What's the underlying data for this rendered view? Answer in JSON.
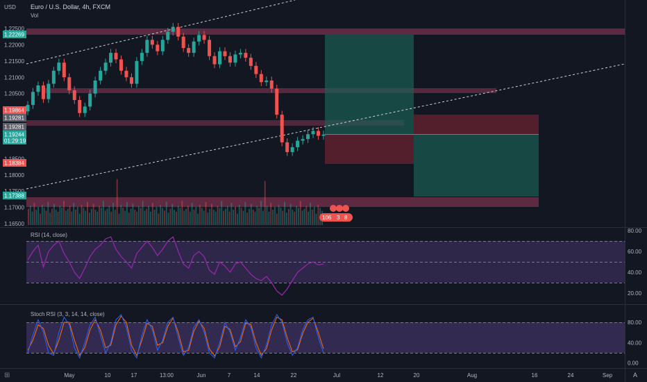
{
  "header": {
    "currency": "USD",
    "symbol_title": "Euro / U.S. Dollar, 4h, FXCM",
    "volume_label": "Vol",
    "rsi_label": "RSI (14, close)",
    "stoch_label": "Stoch RSI (3, 3, 14, 14, close)",
    "auto_button": "A",
    "tv_logo": "tradingview-logo-icon",
    "marker_text_1": "106",
    "marker_text_2": "3",
    "marker_text_3": "8"
  },
  "colors": {
    "background": "#131722",
    "up": "#26a69a",
    "down": "#ef5350",
    "zone": "#9c3a5c",
    "rsi_line": "#9c27b0",
    "rsi_band": "#7e57c2",
    "stoch_k": "#2962ff",
    "stoch_d": "#ff6d00",
    "target_zone": "#1b5e52",
    "stop_zone": "#6b2330"
  },
  "price_tags": [
    {
      "label": "1.22269",
      "color": "#26a69a"
    },
    {
      "label": "1.19864",
      "color": "#ef5350"
    },
    {
      "label": "1.19281",
      "color": "#5d606b"
    },
    {
      "label": "1.19281",
      "color": "#5d606b"
    },
    {
      "label": "1.19244",
      "color": "#26a69a"
    },
    {
      "label": "01:29:19",
      "color": "#26a69a"
    },
    {
      "label": "1.18384",
      "color": "#ef5350"
    },
    {
      "label": "1.17388",
      "color": "#26a69a"
    }
  ],
  "chart_data": [
    {
      "type": "candlestick",
      "title": "Euro / U.S. Dollar, 4h, FXCM",
      "yunit": "USD",
      "ylim": [
        1.1635,
        1.2275
      ],
      "yticks": [
        "1.22500",
        "1.22000",
        "1.21500",
        "1.21000",
        "1.20500",
        "1.20000",
        "1.19500",
        "1.19000",
        "1.18500",
        "1.18000",
        "1.17500",
        "1.17000",
        "1.16500"
      ],
      "x_ticks": [
        "May",
        "10",
        "17",
        "13:00",
        "Jun",
        "7",
        "14",
        "22",
        "Jul",
        "12",
        "20",
        "Aug",
        "16",
        "24",
        "Sep"
      ],
      "series": [
        {
          "close": [
            1.2015,
            1.2055,
            1.2075,
            1.2033,
            1.208,
            1.212,
            1.2145,
            1.21,
            1.206,
            1.203,
            1.199,
            1.201,
            1.205,
            1.209,
            1.212,
            1.2145,
            1.2175,
            1.2155,
            1.212,
            1.21,
            1.208,
            1.215,
            1.2175,
            1.2215,
            1.22,
            1.218,
            1.2215,
            1.224,
            1.2255,
            1.2225,
            1.219,
            1.2175,
            1.221,
            1.223,
            1.2215,
            1.2165,
            1.214,
            1.218,
            1.2165,
            1.2145,
            1.217,
            1.2175,
            1.216,
            1.2135,
            1.211,
            1.2085,
            1.209,
            1.2065,
            1.1985,
            1.19,
            1.187,
            1.1885,
            1.1905,
            1.191,
            1.1925,
            1.1935,
            1.192,
            1.1924
          ]
        }
      ]
    },
    {
      "type": "bar",
      "title": "Vol",
      "description": "volume histogram under price, colored by candle direction"
    },
    {
      "type": "line",
      "title": "RSI (14, close)",
      "ylim": [
        15,
        80
      ],
      "yticks": [
        "80.00",
        "60.00",
        "40.00",
        "20.00"
      ],
      "bands": [
        70,
        50,
        30
      ],
      "series": [
        {
          "name": "RSI",
          "values": [
            52,
            60,
            66,
            45,
            60,
            66,
            70,
            58,
            50,
            40,
            34,
            44,
            55,
            62,
            66,
            72,
            74,
            62,
            55,
            50,
            44,
            58,
            64,
            70,
            64,
            56,
            62,
            70,
            74,
            60,
            48,
            44,
            56,
            60,
            55,
            42,
            38,
            50,
            46,
            40,
            48,
            50,
            44,
            38,
            34,
            32,
            36,
            30,
            22,
            18,
            24,
            32,
            40,
            44,
            48,
            50,
            47,
            48
          ]
        }
      ]
    },
    {
      "type": "line",
      "title": "Stoch RSI (3, 3, 14, 14, close)",
      "ylim": [
        -5,
        95
      ],
      "yticks": [
        "80.00",
        "40.00",
        "0.00"
      ],
      "bands": [
        80,
        20
      ],
      "series": [
        {
          "name": "K",
          "values": [
            20,
            55,
            85,
            60,
            20,
            15,
            60,
            90,
            75,
            30,
            10,
            40,
            75,
            90,
            55,
            20,
            40,
            85,
            95,
            70,
            25,
            10,
            55,
            85,
            65,
            25,
            45,
            80,
            90,
            50,
            15,
            30,
            70,
            85,
            60,
            20,
            10,
            40,
            80,
            60,
            25,
            50,
            85,
            70,
            30,
            10,
            35,
            75,
            95,
            80,
            40,
            15,
            30,
            65,
            85,
            90,
            50,
            20
          ]
        },
        {
          "name": "D",
          "values": [
            25,
            45,
            75,
            68,
            35,
            18,
            45,
            80,
            80,
            45,
            15,
            30,
            65,
            85,
            65,
            30,
            35,
            75,
            92,
            80,
            35,
            15,
            45,
            78,
            72,
            35,
            40,
            72,
            88,
            60,
            22,
            25,
            62,
            82,
            68,
            28,
            14,
            32,
            72,
            66,
            32,
            42,
            78,
            76,
            40,
            15,
            28,
            65,
            90,
            85,
            50,
            22,
            26,
            58,
            80,
            88,
            60,
            28
          ]
        }
      ]
    }
  ]
}
